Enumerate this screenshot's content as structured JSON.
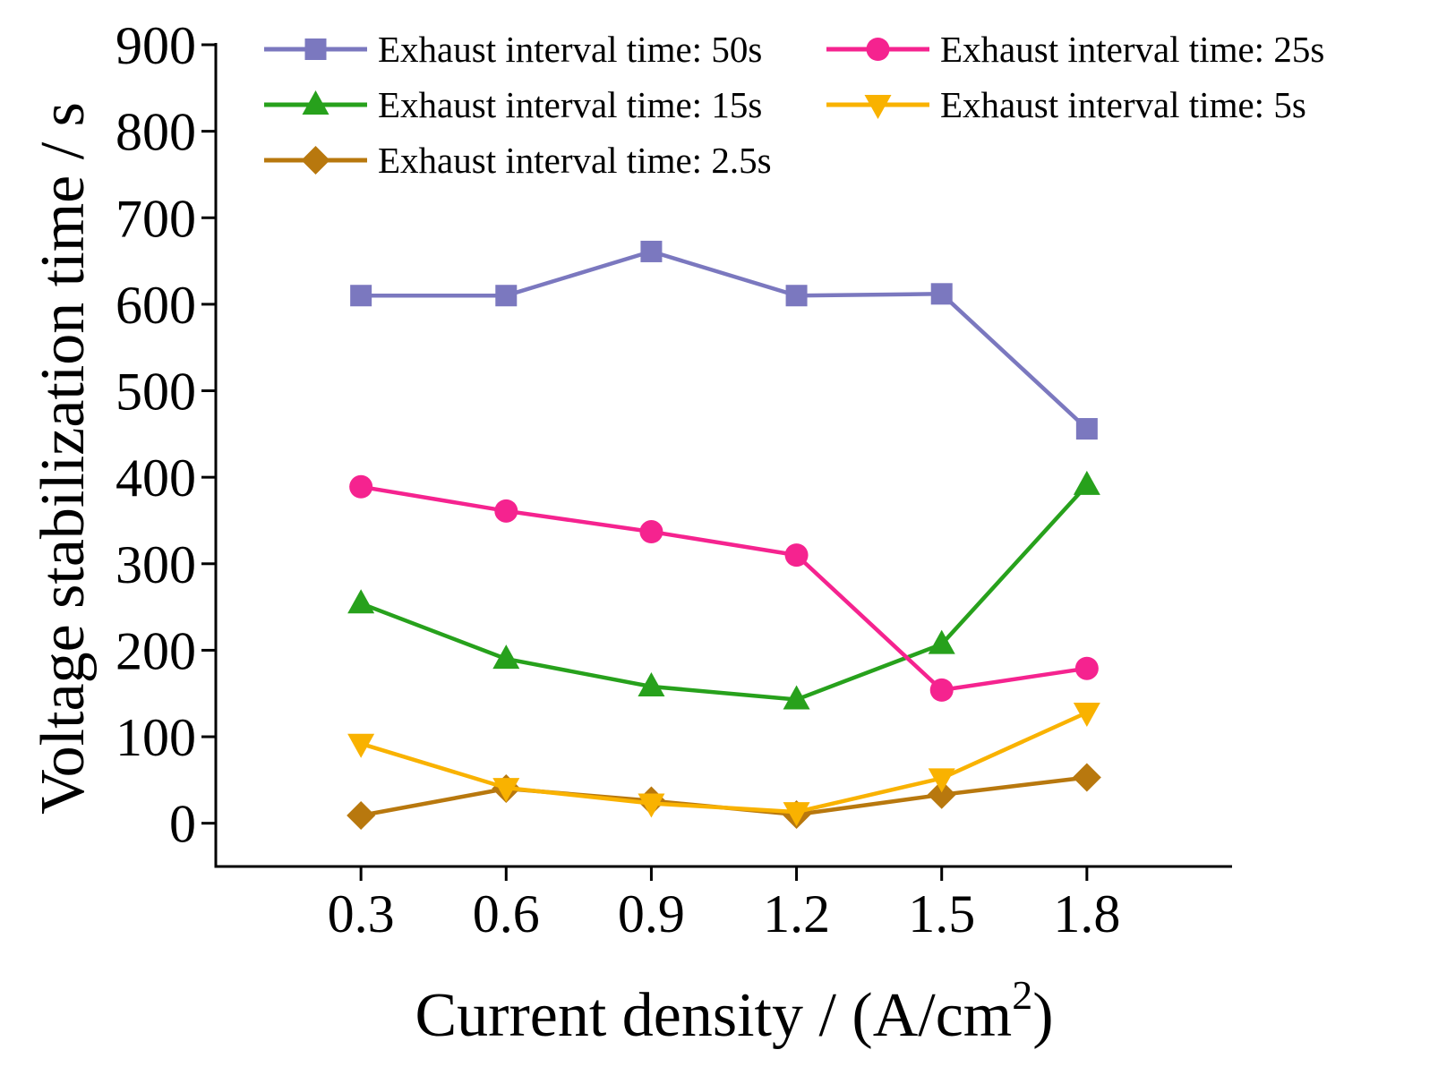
{
  "chart_data": {
    "type": "line",
    "title": "",
    "xlabel": "Current density / (A/cm",
    "xlabel_superscript": "2",
    "xlabel_suffix": ")",
    "ylabel": "Voltage stabilization time / s",
    "x": [
      0.3,
      0.6,
      0.9,
      1.2,
      1.5,
      1.8
    ],
    "x_tick_labels": [
      "0.3",
      "0.6",
      "0.9",
      "1.2",
      "1.5",
      "1.8"
    ],
    "xlim": [
      0.0,
      2.1
    ],
    "ylim": [
      -50,
      900
    ],
    "y_ticks": [
      0,
      100,
      200,
      300,
      400,
      500,
      600,
      700,
      800,
      900
    ],
    "y_tick_labels": [
      "0",
      "100",
      "200",
      "300",
      "400",
      "500",
      "600",
      "700",
      "800",
      "900"
    ],
    "grid": false,
    "legend_position": "top",
    "series": [
      {
        "name": "Exhaust interval time: 50s",
        "marker": "square",
        "color": "#7b78bf",
        "values": [
          610,
          610,
          661,
          610,
          612,
          456
        ]
      },
      {
        "name": "Exhaust interval time: 25s",
        "marker": "circle",
        "color": "#f5238f",
        "values": [
          389,
          361,
          337,
          310,
          154,
          179
        ]
      },
      {
        "name": "Exhaust interval time: 15s",
        "marker": "triangle-up",
        "color": "#27a11c",
        "values": [
          254,
          190,
          158,
          143,
          207,
          391
        ]
      },
      {
        "name": "Exhaust interval time: 5s",
        "marker": "triangle-down",
        "color": "#f9b200",
        "values": [
          92,
          41,
          23,
          13,
          52,
          128
        ]
      },
      {
        "name": "Exhaust interval time: 2.5s",
        "marker": "diamond",
        "color": "#b8780e",
        "values": [
          9,
          40,
          26,
          10,
          33,
          53
        ]
      }
    ]
  }
}
